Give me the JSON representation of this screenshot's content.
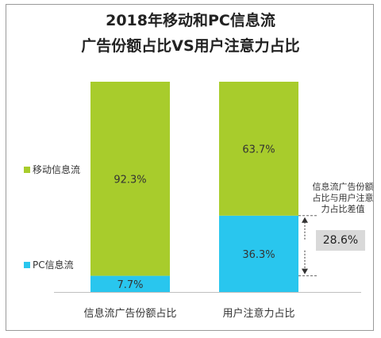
{
  "title": "2018年移动和PC信息流",
  "subtitle": "广告份额占比VS用户注意力占比",
  "colors": {
    "mobile": "#a8cc2c",
    "pc": "#29c6ee",
    "frame": "#9a9a9a"
  },
  "chart_data": {
    "type": "bar",
    "stacked": true,
    "categories": [
      "信息流广告份额占比",
      "用户注意力占比"
    ],
    "series": [
      {
        "name": "PC信息流",
        "values": [
          7.7,
          36.3
        ]
      },
      {
        "name": "移动信息流",
        "values": [
          92.3,
          63.7
        ]
      }
    ],
    "data_labels": [
      [
        "7.7%",
        "92.3%"
      ],
      [
        "36.3%",
        "63.7%"
      ]
    ],
    "ylim": [
      0,
      100
    ],
    "legend": "left",
    "annotation": {
      "text": "信息流广告份额占比与用户注意力占比差值",
      "value": "28.6%"
    }
  }
}
